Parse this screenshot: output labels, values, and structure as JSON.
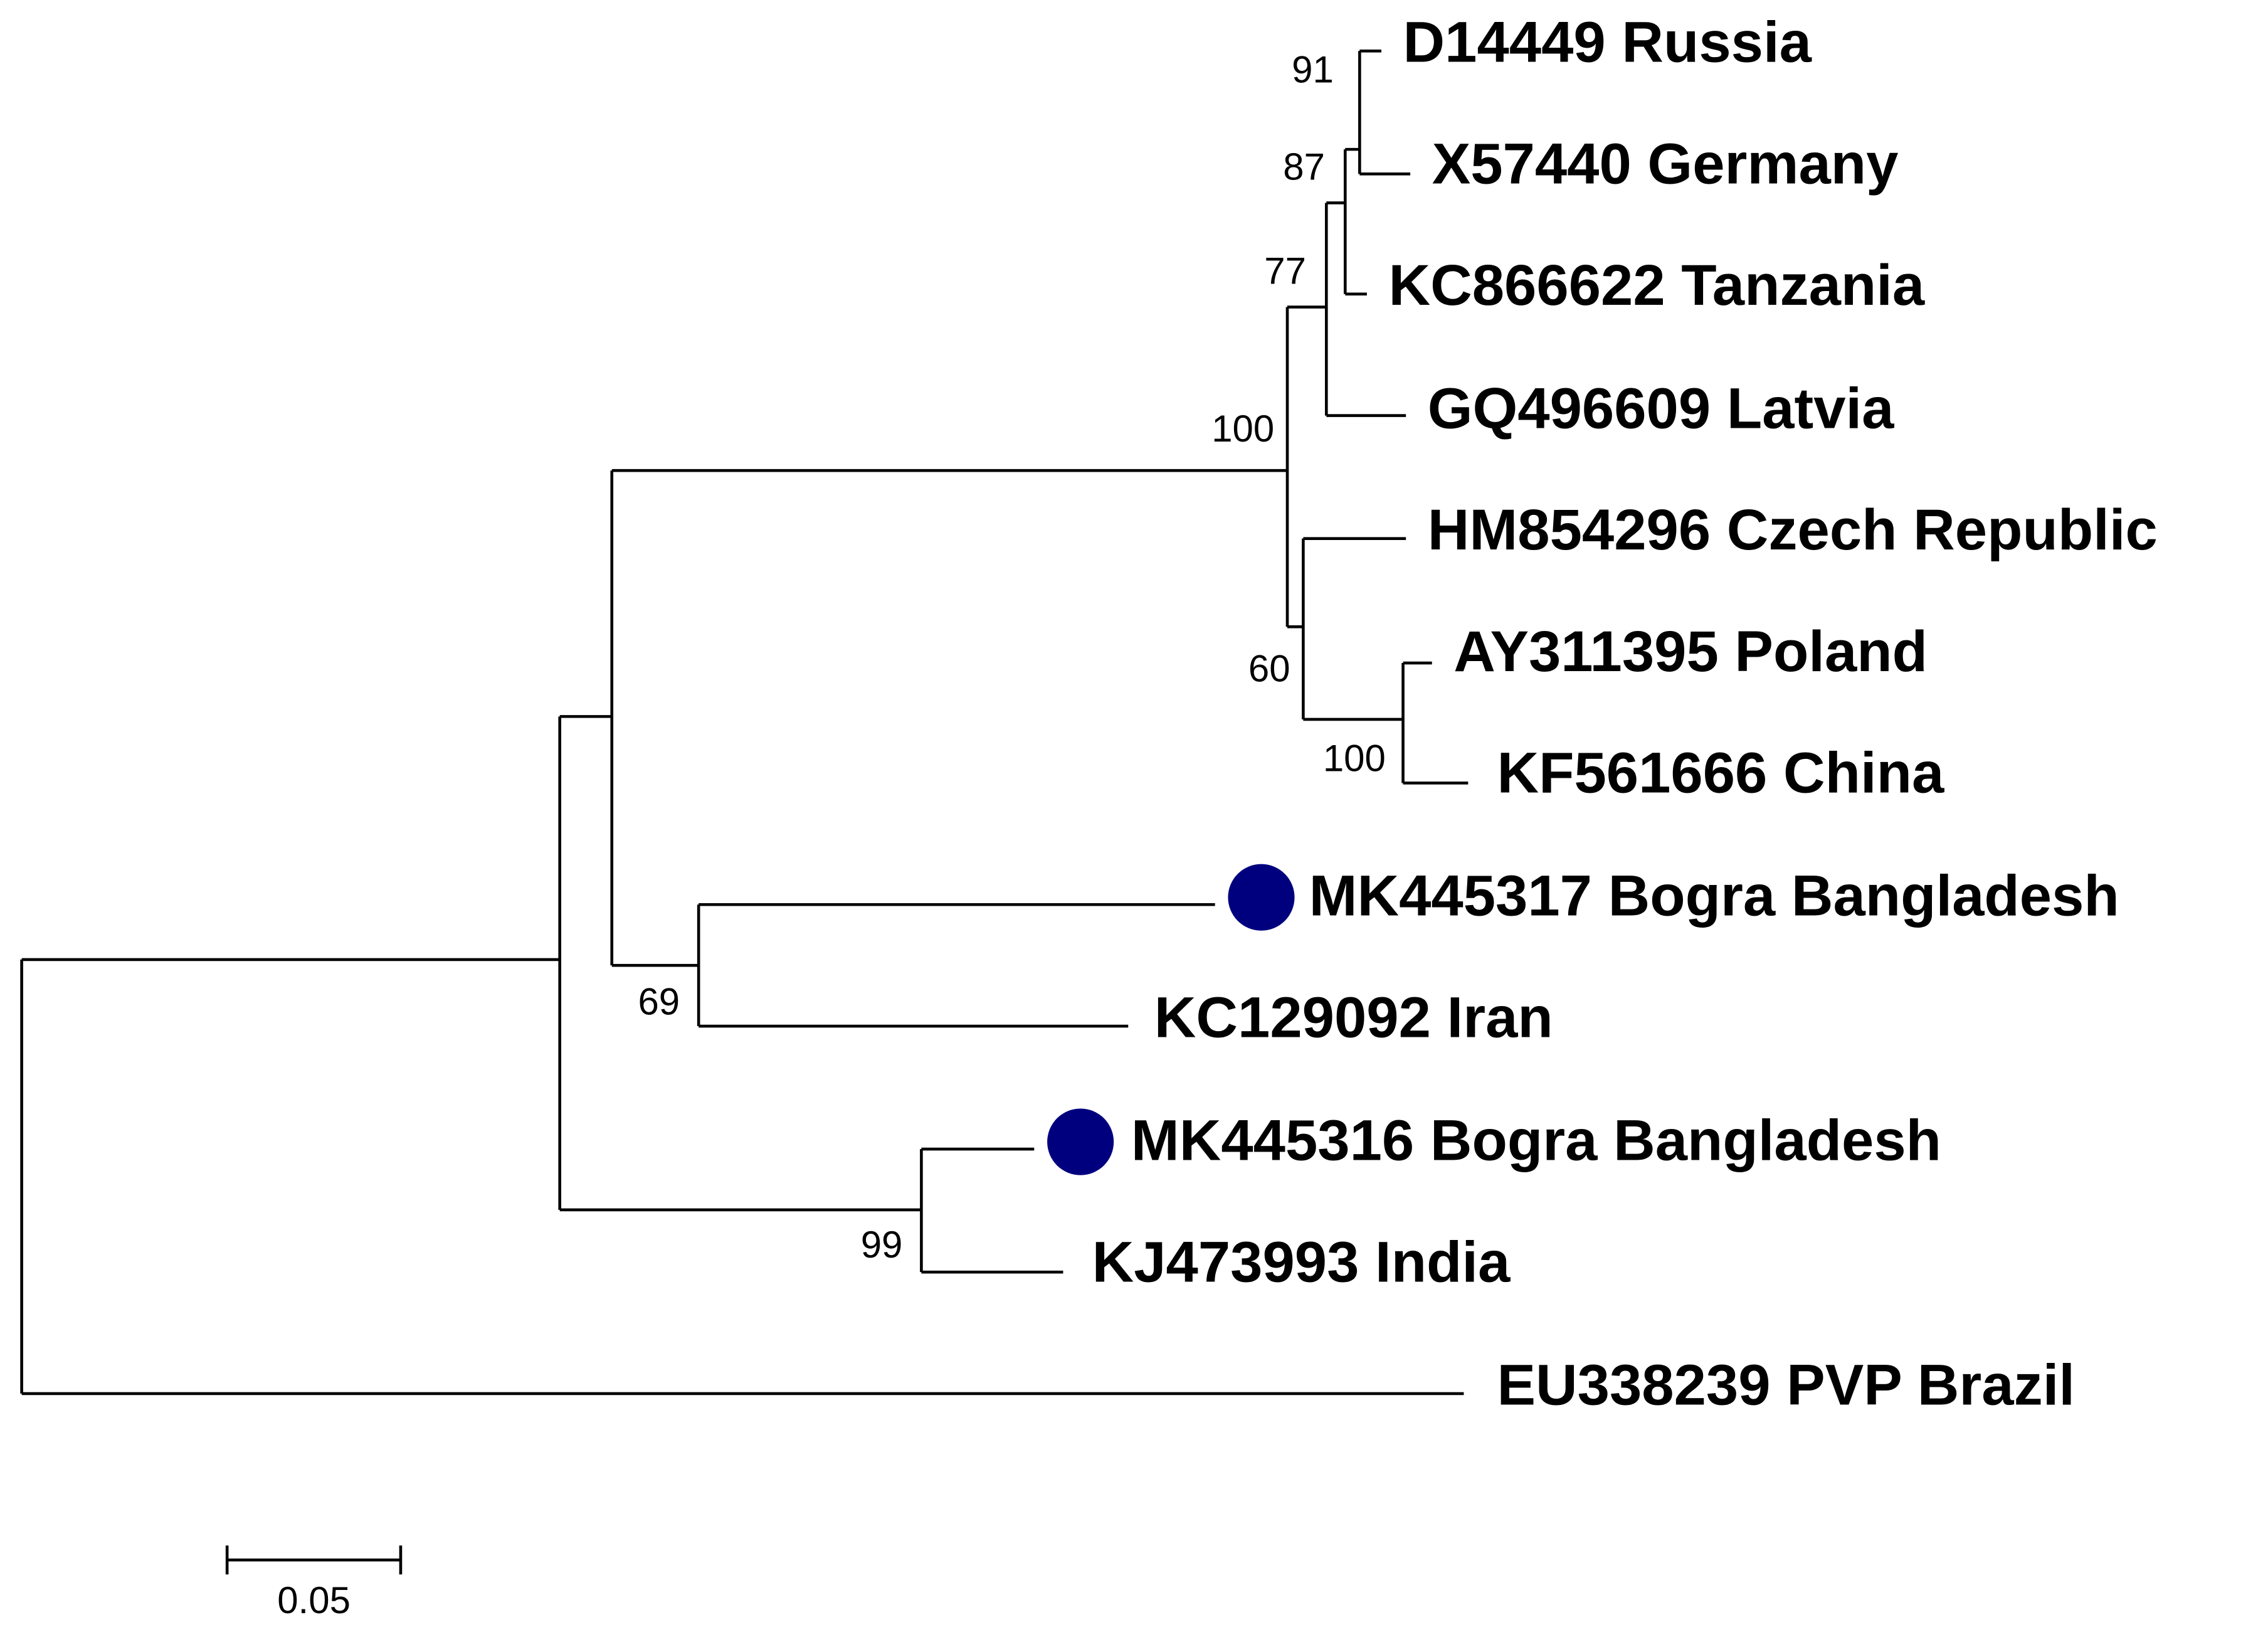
{
  "taxa": [
    "D14449 Russia",
    "X57440 Germany",
    "KC866622 Tanzania",
    "GQ496609 Latvia",
    "HM854296 Czech Republic",
    "AY311395 Poland",
    "KF561666 China",
    "MK445317 Bogra Bangladesh",
    "KC129092 Iran",
    "MK445316 Bogra Bangladesh",
    "KJ473993 India",
    "EU338239 PVP Brazil"
  ],
  "bootstrap": [
    91,
    87,
    77,
    100,
    60,
    100,
    69,
    99
  ],
  "scale_bar": "0.05"
}
